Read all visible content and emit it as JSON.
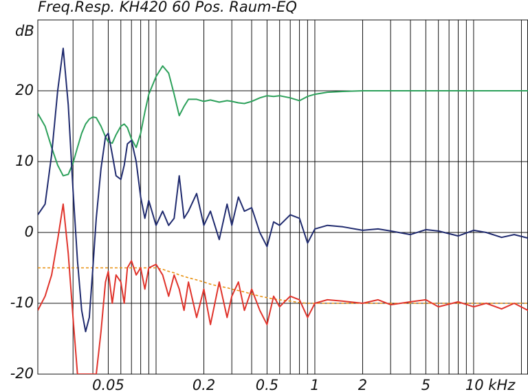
{
  "chart_data": {
    "type": "line",
    "title": "Freq.Resp.  KH420   60 Pos.  Raum-EQ",
    "y_label": "dB",
    "x_log": true,
    "grid": true,
    "xlim": [
      0.018,
      22
    ],
    "ylim": [
      -20,
      30
    ],
    "yticks": [
      -20,
      -10,
      0,
      10,
      20
    ],
    "xticks": [
      0.05,
      0.2,
      0.5,
      1,
      2,
      5,
      {
        "value": 10,
        "label": "10 kHz"
      }
    ],
    "x_minor_gridlines": [
      0.03,
      0.04,
      0.06,
      0.07,
      0.08,
      0.09,
      0.1,
      0.3,
      0.4,
      0.6,
      0.7,
      0.8,
      0.9,
      3,
      4,
      6,
      7,
      8,
      9,
      20
    ],
    "x": [
      0.018,
      0.02,
      0.022,
      0.024,
      0.026,
      0.028,
      0.03,
      0.032,
      0.034,
      0.036,
      0.038,
      0.04,
      0.042,
      0.045,
      0.048,
      0.05,
      0.053,
      0.056,
      0.06,
      0.063,
      0.066,
      0.07,
      0.075,
      0.08,
      0.085,
      0.09,
      0.1,
      0.11,
      0.12,
      0.13,
      0.14,
      0.15,
      0.16,
      0.18,
      0.2,
      0.22,
      0.25,
      0.28,
      0.3,
      0.33,
      0.36,
      0.4,
      0.45,
      0.5,
      0.55,
      0.6,
      0.7,
      0.8,
      0.9,
      1,
      1.2,
      1.5,
      2,
      2.5,
      3,
      4,
      5,
      6,
      8,
      10,
      12,
      15,
      18,
      22
    ],
    "series": [
      {
        "color": "#e8900f",
        "linestyle": "dashed",
        "values": [
          -5,
          -5,
          -5,
          -5,
          -5,
          -5,
          -5,
          -5,
          -5,
          -5,
          -5,
          -5,
          -5,
          -5,
          -5,
          -5,
          -5,
          -5,
          -5,
          -5,
          -5,
          -5,
          -5,
          -5,
          -5,
          -5,
          -5,
          -5.2,
          -5.5,
          -5.7,
          -6,
          -6.2,
          -6.4,
          -6.7,
          -7,
          -7.3,
          -7.6,
          -7.8,
          -8,
          -8.2,
          -8.4,
          -8.7,
          -9,
          -9.2,
          -9.4,
          -9.5,
          -9.7,
          -9.9,
          -10,
          -10,
          -10,
          -10,
          -10,
          -10,
          -10,
          -10,
          -10,
          -10,
          -10,
          -10,
          -10,
          -10,
          -10,
          -10
        ]
      },
      {
        "color": "#2ca05a",
        "linestyle": "solid",
        "values": [
          16.8,
          15,
          12,
          9.5,
          8,
          8.2,
          9.8,
          12,
          14,
          15.3,
          16,
          16.3,
          16.2,
          15,
          13.5,
          12.8,
          12.6,
          13.8,
          15,
          15.3,
          14.8,
          13.2,
          12,
          14,
          17,
          19.5,
          22,
          23.5,
          22.5,
          19.5,
          16.5,
          17.8,
          18.8,
          18.8,
          18.5,
          18.7,
          18.4,
          18.6,
          18.5,
          18.3,
          18.2,
          18.5,
          19,
          19.3,
          19.2,
          19.3,
          19,
          18.6,
          19.2,
          19.5,
          19.8,
          19.9,
          20,
          20,
          20,
          20,
          20,
          20,
          20,
          20,
          20,
          20,
          20,
          20
        ]
      },
      {
        "color": "#1f2a6e",
        "linestyle": "solid",
        "values": [
          2.5,
          4,
          11,
          20,
          26,
          18,
          6,
          -4,
          -11,
          -14,
          -12,
          -5,
          2,
          9,
          13.5,
          14,
          11,
          8,
          7.5,
          9.5,
          12.5,
          13,
          10,
          5,
          2,
          4.5,
          1,
          3,
          1,
          2,
          8,
          2,
          3,
          5.5,
          1,
          3,
          -1,
          4,
          1,
          5,
          3,
          3.5,
          0,
          -2,
          1.5,
          1,
          2.5,
          2,
          -1.5,
          0.5,
          1,
          0.8,
          0.3,
          0.5,
          0.2,
          -0.3,
          0.4,
          0.2,
          -0.5,
          0.3,
          0,
          -0.7,
          -0.3,
          -0.8
        ]
      },
      {
        "color": "#e0332b",
        "linestyle": "solid",
        "values": [
          -11,
          -9,
          -6,
          -1,
          4,
          -3,
          -12,
          -20,
          -20,
          -20,
          -20,
          -20,
          -20,
          -14,
          -7,
          -5.5,
          -10,
          -6,
          -7,
          -10,
          -5,
          -4,
          -6,
          -5,
          -8,
          -5,
          -4.5,
          -6,
          -9,
          -6,
          -8,
          -11,
          -7,
          -12,
          -8,
          -13,
          -7,
          -12,
          -9,
          -7,
          -11,
          -8,
          -11,
          -13,
          -9,
          -10.5,
          -9,
          -9.5,
          -12,
          -10,
          -9.5,
          -9.7,
          -10,
          -9.5,
          -10.2,
          -9.8,
          -9.5,
          -10.5,
          -9.8,
          -10.5,
          -10,
          -10.8,
          -10,
          -11
        ]
      }
    ]
  }
}
